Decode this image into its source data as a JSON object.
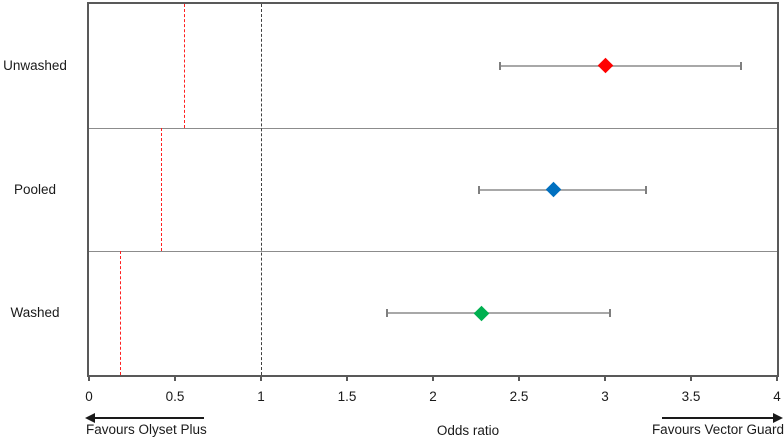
{
  "chart_data": {
    "type": "scatter",
    "subtype": "forest-plot",
    "title": "",
    "xlabel": "Odds ratio",
    "xlim": [
      0,
      4
    ],
    "xticks": [
      {
        "value": 0,
        "label": "0"
      },
      {
        "value": 0.5,
        "label": "0.5"
      },
      {
        "value": 1,
        "label": "1"
      },
      {
        "value": 1.5,
        "label": "1.5"
      },
      {
        "value": 2,
        "label": "2"
      },
      {
        "value": 2.5,
        "label": "2.5"
      },
      {
        "value": 3,
        "label": "3"
      },
      {
        "value": 3.5,
        "label": "3.5"
      },
      {
        "value": 4,
        "label": "4"
      }
    ],
    "null_line_x": 1,
    "grid": false,
    "legend": false,
    "panels": [
      {
        "label": "Unwashed",
        "odds_ratio": 3.0,
        "ci_low": 2.39,
        "ci_high": 3.79,
        "marker_color": "#ff0000",
        "ref_line_x": 0.55
      },
      {
        "label": "Pooled",
        "odds_ratio": 2.7,
        "ci_low": 2.27,
        "ci_high": 3.24,
        "marker_color": "#0070c0",
        "ref_line_x": 0.42
      },
      {
        "label": "Washed",
        "odds_ratio": 2.28,
        "ci_low": 1.73,
        "ci_high": 3.03,
        "marker_color": "#00b050",
        "ref_line_x": 0.18
      }
    ],
    "annotations": {
      "left_arrow_label": "Favours Olyset Plus",
      "right_arrow_label": "Favours Vector Guard"
    },
    "colors": {
      "ci_line": "#a8a8a8",
      "ci_cap": "#7f7f7f",
      "ref_line": "#ff1f1f",
      "null_line": "#404040",
      "plot_border": "#595959",
      "panel_divider": "#8c8c8c",
      "text": "#1a1a1a"
    }
  }
}
